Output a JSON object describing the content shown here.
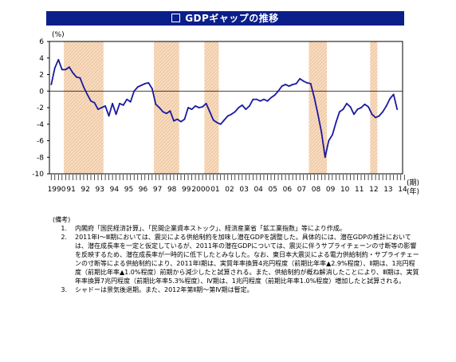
{
  "title": "GDPギャップの推移",
  "chart_data": {
    "type": "line",
    "unit_label": "(%)",
    "xlabel_line1": "(期)",
    "xlabel_line2": "(年)",
    "ylim": [
      -10,
      6
    ],
    "yticks": [
      6,
      4,
      2,
      0,
      -2,
      -4,
      -6,
      -8,
      -10
    ],
    "year_labels": [
      "1990",
      "91",
      "92",
      "93",
      "94",
      "95",
      "96",
      "97",
      "98",
      "99",
      "2000",
      "01",
      "02",
      "03",
      "04",
      "05",
      "06",
      "07",
      "08",
      "09",
      "10",
      "11",
      "12",
      "13",
      "14"
    ],
    "shaded_periods": [
      [
        1991.0,
        1993.75
      ],
      [
        1997.25,
        1999.0
      ],
      [
        2000.75,
        2001.75
      ],
      [
        2008.0,
        2009.25
      ],
      [
        2012.25,
        2012.75
      ]
    ],
    "series": [
      {
        "color": "#1a1aa0",
        "x": [
          1990.0,
          1990.25,
          1990.5,
          1990.75,
          1991.0,
          1991.25,
          1991.5,
          1991.75,
          1992.0,
          1992.25,
          1992.5,
          1992.75,
          1993.0,
          1993.25,
          1993.5,
          1993.75,
          1994.0,
          1994.25,
          1994.5,
          1994.75,
          1995.0,
          1995.25,
          1995.5,
          1995.75,
          1996.0,
          1996.25,
          1996.5,
          1996.75,
          1997.0,
          1997.25,
          1997.5,
          1997.75,
          1998.0,
          1998.25,
          1998.5,
          1998.75,
          1999.0,
          1999.25,
          1999.5,
          1999.75,
          2000.0,
          2000.25,
          2000.5,
          2000.75,
          2001.0,
          2001.25,
          2001.5,
          2001.75,
          2002.0,
          2002.25,
          2002.5,
          2002.75,
          2003.0,
          2003.25,
          2003.5,
          2003.75,
          2004.0,
          2004.25,
          2004.5,
          2004.75,
          2005.0,
          2005.25,
          2005.5,
          2005.75,
          2006.0,
          2006.25,
          2006.5,
          2006.75,
          2007.0,
          2007.25,
          2007.5,
          2007.75,
          2008.0,
          2008.25,
          2008.5,
          2008.75,
          2009.0,
          2009.25,
          2009.5,
          2009.75,
          2010.0,
          2010.25,
          2010.5,
          2010.75,
          2011.0,
          2011.25,
          2011.5,
          2011.75,
          2012.0,
          2012.25,
          2012.5,
          2012.75,
          2013.0,
          2013.25,
          2013.5,
          2013.75,
          2014.0
        ],
        "y": [
          0.8,
          2.8,
          3.8,
          2.6,
          2.6,
          2.9,
          2.2,
          1.7,
          1.6,
          0.5,
          -0.4,
          -1.2,
          -1.4,
          -2.2,
          -2.0,
          -1.8,
          -3.0,
          -1.5,
          -2.8,
          -1.5,
          -1.7,
          -1.0,
          -1.3,
          0.0,
          0.5,
          0.7,
          0.9,
          1.0,
          0.3,
          -1.6,
          -2.0,
          -2.5,
          -2.7,
          -2.4,
          -3.6,
          -3.4,
          -3.7,
          -3.4,
          -2.0,
          -2.2,
          -1.8,
          -2.0,
          -1.9,
          -1.5,
          -2.5,
          -3.5,
          -3.8,
          -4.0,
          -3.5,
          -3.0,
          -2.8,
          -2.5,
          -2.0,
          -1.7,
          -2.2,
          -1.8,
          -1.0,
          -1.0,
          -1.2,
          -1.0,
          -1.2,
          -0.8,
          -0.5,
          0.0,
          0.6,
          0.8,
          0.6,
          0.8,
          0.9,
          1.5,
          1.2,
          1.0,
          0.9,
          -0.8,
          -2.8,
          -5.0,
          -8.0,
          -6.0,
          -5.3,
          -3.8,
          -2.5,
          -2.2,
          -1.5,
          -1.9,
          -2.8,
          -2.2,
          -2.0,
          -1.6,
          -1.9,
          -2.8,
          -3.2,
          -3.0,
          -2.5,
          -1.8,
          -0.9,
          -0.4,
          -2.2
        ]
      }
    ]
  },
  "notes": {
    "header": "(備考)",
    "items": [
      {
        "num": "1.",
        "text": "内閣府「国民経済計算」、「民間企業資本ストック」、経済産業省「鉱工業指数」等により作成。"
      },
      {
        "num": "2.",
        "text": "2011年Ⅰ～Ⅲ期においては、震災による供給制約を加味し潜在GDPを調整した。具体的には、潜在GDPの推計においては、潜在成長率を一定と仮定しているが、2011年の潜在GDPについては、震災に伴うサプライチェーンの寸断等の影響を反映するため、潜在成長率が一時的に低下したとみなした。なお、東日本大震災による電力供給制約・サプライチェーンの寸断等による供給制約により、2011年Ⅰ期は、実質年率換算4兆円程度（前期比年率▲2.9%程度）、Ⅱ期は、1兆円程度（前期比年率▲1.0%程度）前期から減少したと試算される。また、供給制約が概ね解消したことにより、Ⅲ期は、実質年率換算7兆円程度（前期比年率5.3%程度）、Ⅳ期は、1兆円程度（前期比年率1.0%程度）増加したと試算される。"
      },
      {
        "num": "3.",
        "text": "シャドーは景気後退期。また、2012年第Ⅱ期～第Ⅳ期は暫定。"
      }
    ]
  }
}
